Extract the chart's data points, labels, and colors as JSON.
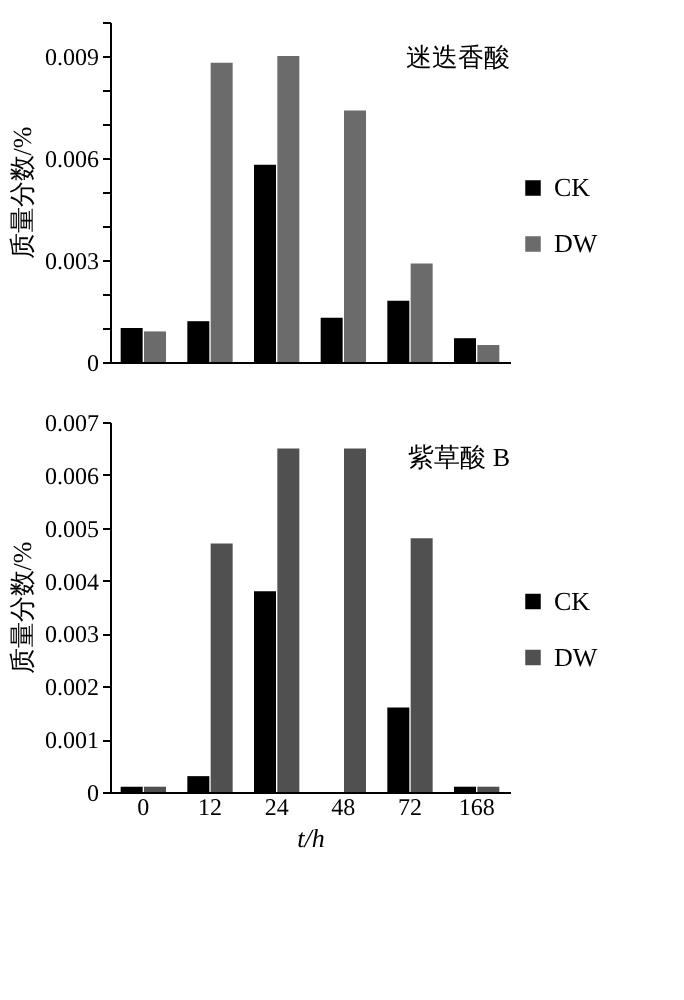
{
  "chart_data": [
    {
      "type": "bar",
      "title": "迷迭香酸",
      "ylabel": "质量分数/%",
      "categories": [
        "0",
        "12",
        "24",
        "48",
        "72",
        "168"
      ],
      "series": [
        {
          "name": "CK",
          "color": "#000000",
          "values": [
            0.001,
            0.0012,
            0.0058,
            0.0013,
            0.0018,
            0.0007
          ]
        },
        {
          "name": "DW",
          "color": "#6b6b6b",
          "values": [
            0.0009,
            0.0088,
            0.009,
            0.0074,
            0.0029,
            0.0005
          ]
        }
      ],
      "ylim": [
        0,
        0.01
      ],
      "yticks": [
        0,
        {
          "value": 0.001,
          "label": null
        },
        {
          "value": 0.002,
          "label": null
        },
        0.003,
        {
          "value": 0.004,
          "label": null
        },
        {
          "value": 0.005,
          "label": null
        },
        0.006,
        {
          "value": 0.007,
          "label": null
        },
        {
          "value": 0.008,
          "label": null
        },
        0.009,
        {
          "value": 0.01,
          "label": null
        }
      ],
      "tick_labels": "y",
      "grid": false,
      "legend": "right"
    },
    {
      "type": "bar",
      "title": "紫草酸 B",
      "ylabel": "质量分数/%",
      "xlabel": "t/h",
      "categories": [
        "0",
        "12",
        "24",
        "48",
        "72",
        "168"
      ],
      "series": [
        {
          "name": "CK",
          "color": "#000000",
          "values": [
            0.0001,
            0.0003,
            0.0038,
            0,
            0.0016,
            0.0001
          ]
        },
        {
          "name": "DW",
          "color": "#505050",
          "values": [
            0.0001,
            0.0047,
            0.0065,
            0.0065,
            0.0048,
            0.0001
          ]
        }
      ],
      "ylim": [
        0,
        0.007
      ],
      "yticks": [
        0,
        0.001,
        0.002,
        0.003,
        0.004,
        0.005,
        0.006,
        0.007
      ],
      "grid": false,
      "legend": "right"
    }
  ]
}
